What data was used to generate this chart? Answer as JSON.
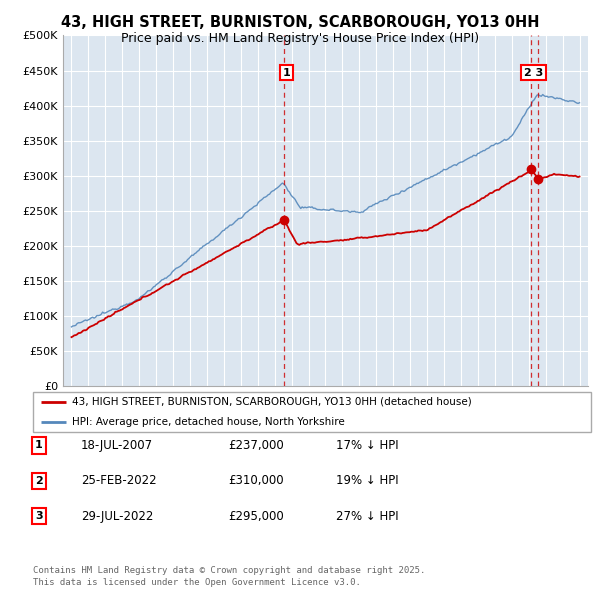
{
  "title": "43, HIGH STREET, BURNISTON, SCARBOROUGH, YO13 0HH",
  "subtitle": "Price paid vs. HM Land Registry's House Price Index (HPI)",
  "background_color": "#dce6f0",
  "plot_bg_color": "#dce6f0",
  "ylim": [
    0,
    500000
  ],
  "yticks": [
    0,
    50000,
    100000,
    150000,
    200000,
    250000,
    300000,
    350000,
    400000,
    450000,
    500000
  ],
  "x_start_year": 1995,
  "x_end_year": 2025,
  "red_line_color": "#cc0000",
  "blue_line_color": "#5588bb",
  "vline_color": "#cc0000",
  "transactions": [
    {
      "label": "1",
      "date_num": 2007.55,
      "price": 237000
    },
    {
      "label": "2",
      "date_num": 2022.12,
      "price": 310000
    },
    {
      "label": "3",
      "date_num": 2022.57,
      "price": 295000
    }
  ],
  "transaction_annotations": [
    {
      "num": "1",
      "date": "18-JUL-2007",
      "price": "£237,000",
      "note": "17% ↓ HPI"
    },
    {
      "num": "2",
      "date": "25-FEB-2022",
      "price": "£310,000",
      "note": "19% ↓ HPI"
    },
    {
      "num": "3",
      "date": "29-JUL-2022",
      "price": "£295,000",
      "note": "27% ↓ HPI"
    }
  ],
  "legend_entries": [
    "43, HIGH STREET, BURNISTON, SCARBOROUGH, YO13 0HH (detached house)",
    "HPI: Average price, detached house, North Yorkshire"
  ],
  "footer": "Contains HM Land Registry data © Crown copyright and database right 2025.\nThis data is licensed under the Open Government Licence v3.0."
}
